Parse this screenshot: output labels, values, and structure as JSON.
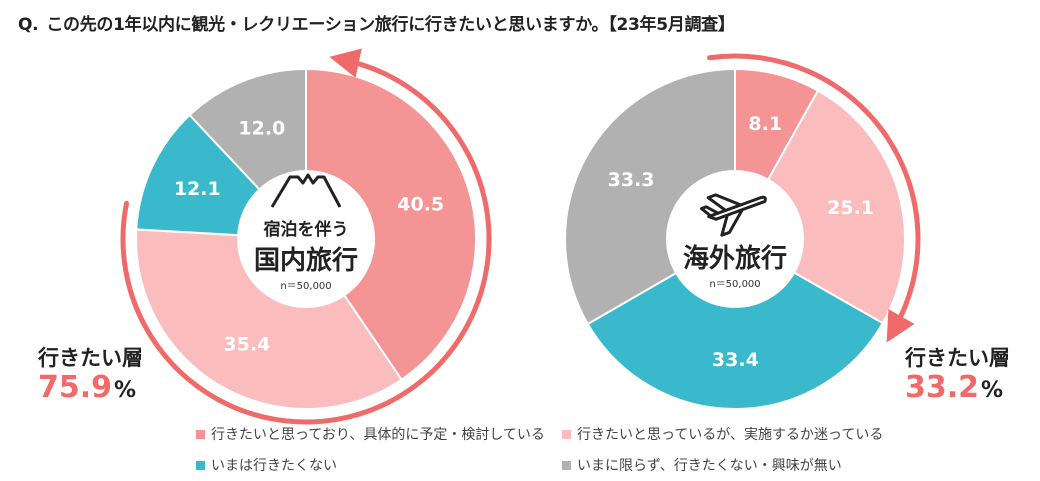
{
  "question": {
    "prefix": "Q.",
    "text": "この先の1年以内に観光・レクリエーション旅行に行きたいと思いますか。【23年5月調査】"
  },
  "colors": {
    "concrete": "#f59494",
    "want_undecided": "#fbbcbd",
    "not_now": "#3ab9cc",
    "never": "#b1b1b1",
    "arrow": "#f06a6a"
  },
  "chart_data": [
    {
      "type": "pie",
      "center_sub": "宿泊を伴う",
      "center_title": "国内旅行",
      "sample": "n＝50,000",
      "icon": "mount-fuji-icon",
      "rate_label": "行きたい層",
      "rate_value": "75.9",
      "rate_unit": "%",
      "slices": [
        {
          "key": "concrete",
          "value": 40.5
        },
        {
          "key": "want_undecided",
          "value": 35.4
        },
        {
          "key": "not_now",
          "value": 12.1
        },
        {
          "key": "never",
          "value": 12.0
        }
      ]
    },
    {
      "type": "pie",
      "center_sub": "",
      "center_title": "海外旅行",
      "sample": "n＝50,000",
      "icon": "airplane-icon",
      "rate_label": "行きたい層",
      "rate_value": "33.2",
      "rate_unit": "%",
      "slices": [
        {
          "key": "concrete",
          "value": 8.1
        },
        {
          "key": "want_undecided",
          "value": 25.1
        },
        {
          "key": "not_now",
          "value": 33.4
        },
        {
          "key": "never",
          "value": 33.3
        }
      ]
    }
  ],
  "legend": [
    {
      "key": "concrete",
      "label": "行きたいと思っており、具体的に予定・検討している"
    },
    {
      "key": "want_undecided",
      "label": "行きたいと思っているが、実施するか迷っている"
    },
    {
      "key": "not_now",
      "label": "いまは行きたくない"
    },
    {
      "key": "never",
      "label": "いまに限らず、行きたくない・興味が無い"
    }
  ]
}
